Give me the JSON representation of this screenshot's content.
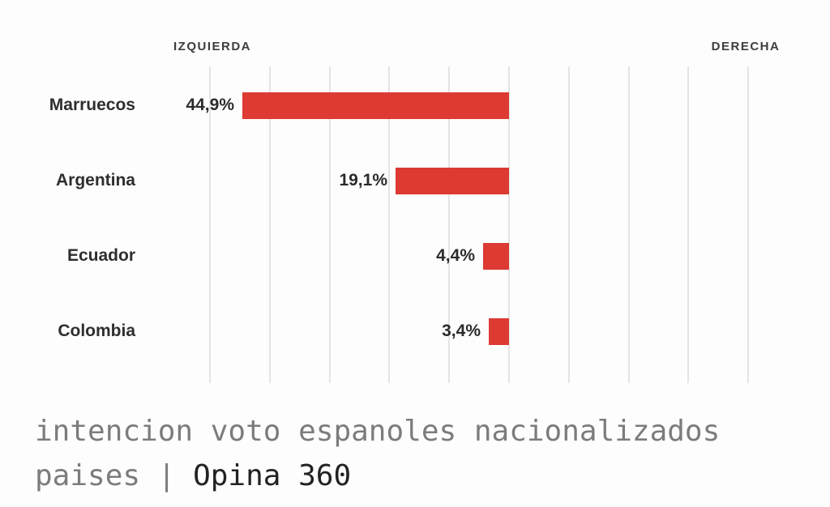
{
  "chart_data": {
    "type": "bar",
    "orientation": "horizontal",
    "bars_extend": "left-from-center-zero-line",
    "categories": [
      "Marruecos",
      "Argentina",
      "Ecuador",
      "Colombia"
    ],
    "values": [
      44.9,
      19.1,
      4.4,
      3.4
    ],
    "value_labels": [
      "44,9%",
      "19,1%",
      "4,4%",
      "3,4%"
    ],
    "axis_endpoints": [
      "IZQUIERDA",
      "DERECHA"
    ],
    "xlim": [
      -50,
      40
    ],
    "gridline_step_percent": 10,
    "grid": true,
    "legend": "none",
    "title": ""
  },
  "caption": {
    "line1": "intencion voto espanoles nacionalizados",
    "line2_prefix": "paises | ",
    "line2_source": "Opina 360"
  },
  "colors": {
    "bar": "#dc3a33",
    "grid": "#e4e4e4",
    "axis_text": "#3d3d3d",
    "label_text": "#2e2e2e",
    "caption_gray": "#7c7c7c",
    "caption_dark": "#222222",
    "background": "#fdfdfd"
  }
}
